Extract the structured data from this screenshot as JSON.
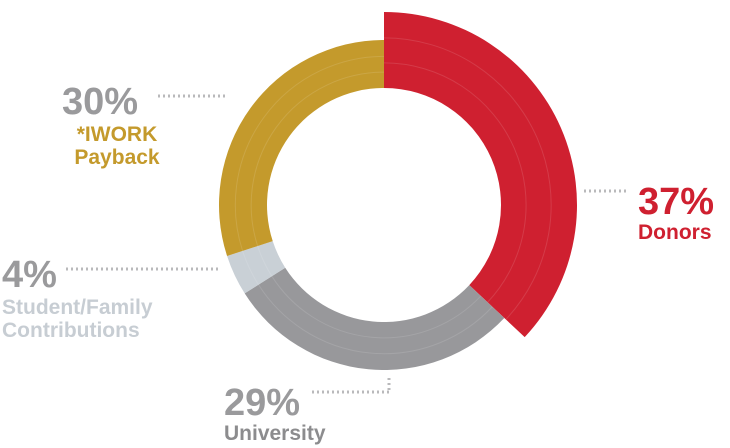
{
  "chart_data": {
    "type": "pie",
    "style": "donut",
    "title": "",
    "slices": [
      {
        "label": "Donors",
        "value": 37,
        "display": "37%",
        "color": "#cf2030",
        "text_color": "#cf2030"
      },
      {
        "label": "University",
        "value": 29,
        "display": "29%",
        "color": "#98989b",
        "text_color": "#8c8c8e"
      },
      {
        "label": "Student/Family Contributions",
        "value": 4,
        "display": "4%",
        "color": "#c9d0d6",
        "text_color": "#c7cdd3"
      },
      {
        "label": "*IWORK Payback",
        "value": 30,
        "display": "30%",
        "color": "#c49a2c",
        "text_color": "#c49a2c"
      }
    ],
    "percent_color": "#9a9a9c",
    "connector_color": "#b9b9bb",
    "legend": "none"
  }
}
